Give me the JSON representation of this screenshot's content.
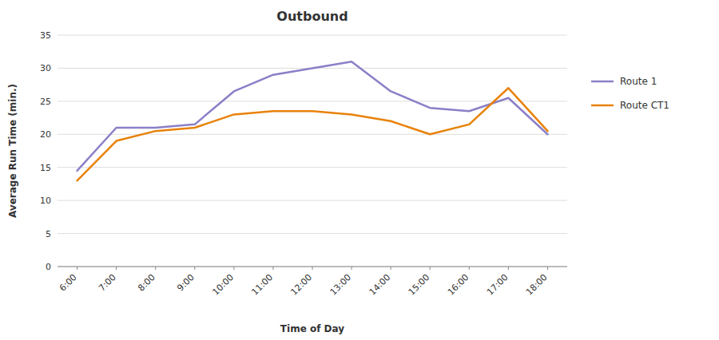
{
  "chart_data": {
    "type": "line",
    "title": "Outbound",
    "xlabel": "Time of Day",
    "ylabel": "Average Run Time (min.)",
    "categories": [
      "6:00",
      "7:00",
      "8:00",
      "9:00",
      "10:00",
      "11:00",
      "12:00",
      "13:00",
      "14:00",
      "15:00",
      "16:00",
      "17:00",
      "18:00"
    ],
    "series": [
      {
        "name": "Route 1",
        "color": "#8B7FC7",
        "values": [
          14.5,
          21.0,
          21.0,
          21.5,
          26.5,
          29.0,
          30.0,
          31.0,
          26.5,
          24.0,
          23.5,
          25.5,
          20.0
        ]
      },
      {
        "name": "Route CT1",
        "color": "#E8820A",
        "values": [
          13.0,
          19.0,
          20.5,
          21.0,
          23.0,
          23.5,
          23.5,
          23.0,
          22.0,
          20.0,
          21.5,
          27.0,
          20.5
        ]
      }
    ],
    "ylim": [
      0,
      35
    ],
    "yticks": [
      0,
      5,
      10,
      15,
      20,
      25,
      30,
      35
    ],
    "grid": true,
    "legend": "right"
  }
}
